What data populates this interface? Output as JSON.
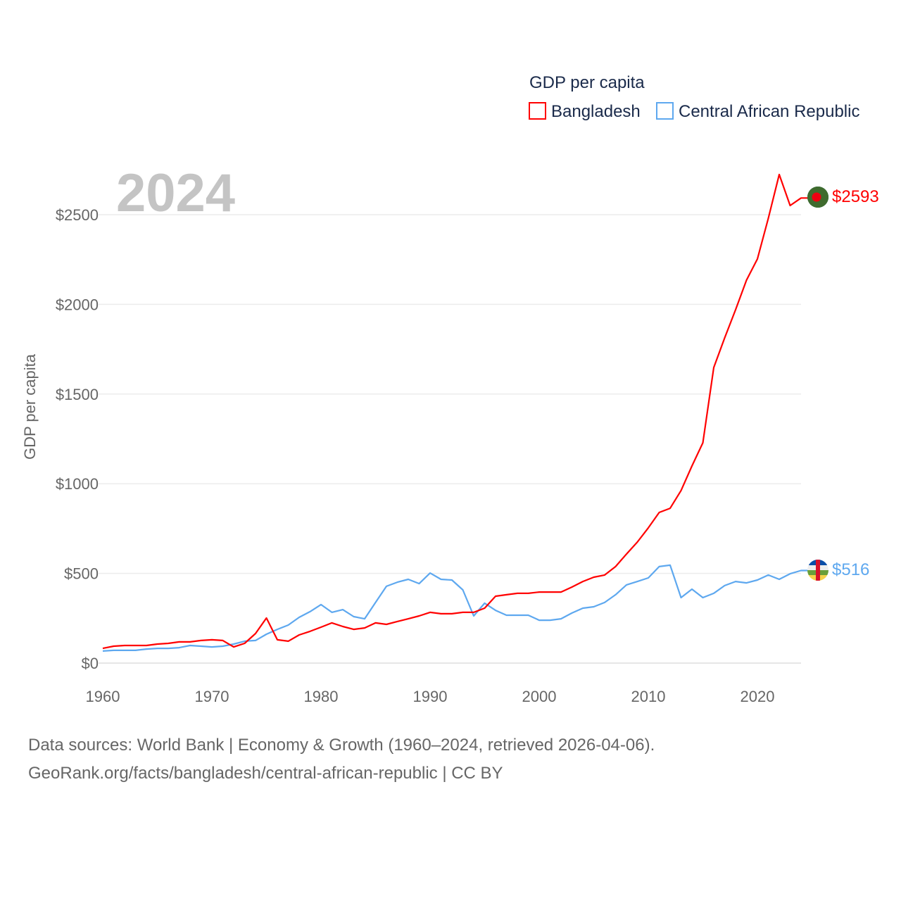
{
  "chart_data": {
    "type": "line",
    "year_watermark": "2024",
    "ylabel": "GDP per capita",
    "legend_title": "GDP per capita",
    "legend_position": "top-right",
    "xlim": [
      1960,
      2024
    ],
    "ylim": [
      0,
      2750
    ],
    "x_ticks": [
      "1960",
      "1970",
      "1980",
      "1990",
      "2000",
      "2010",
      "2020"
    ],
    "x_tick_values": [
      1960,
      1970,
      1980,
      1990,
      2000,
      2010,
      2020
    ],
    "y_ticks": [
      "$0",
      "$500",
      "$1000",
      "$1500",
      "$2000",
      "$2500"
    ],
    "y_tick_values": [
      0,
      500,
      1000,
      1500,
      2000,
      2500
    ],
    "grid": true,
    "x": [
      1960,
      1961,
      1962,
      1963,
      1964,
      1965,
      1966,
      1967,
      1968,
      1969,
      1970,
      1971,
      1972,
      1973,
      1974,
      1975,
      1976,
      1977,
      1978,
      1979,
      1980,
      1981,
      1982,
      1983,
      1984,
      1985,
      1986,
      1987,
      1988,
      1989,
      1990,
      1991,
      1992,
      1993,
      1994,
      1995,
      1996,
      1997,
      1998,
      1999,
      2000,
      2001,
      2002,
      2003,
      2004,
      2005,
      2006,
      2007,
      2008,
      2009,
      2010,
      2011,
      2012,
      2013,
      2014,
      2015,
      2016,
      2017,
      2018,
      2019,
      2020,
      2021,
      2022,
      2023,
      2024
    ],
    "series": [
      {
        "name": "Bangladesh",
        "color": "#ff0000",
        "end_label": "$2593",
        "values": [
          82,
          94,
          98,
          98,
          98,
          106,
          110,
          118,
          118,
          126,
          130,
          126,
          90,
          110,
          165,
          251,
          130,
          122,
          157,
          177,
          200,
          224,
          204,
          188,
          196,
          224,
          216,
          232,
          247,
          263,
          283,
          275,
          275,
          283,
          283,
          306,
          373,
          381,
          389,
          389,
          396,
          396,
          396,
          424,
          455,
          479,
          491,
          538,
          608,
          675,
          754,
          840,
          863,
          962,
          1099,
          1228,
          1648,
          1813,
          1970,
          2135,
          2253,
          2480,
          2724,
          2551,
          2593
        ]
      },
      {
        "name": "Central African Republic",
        "color": "#5ea8ef",
        "end_label": "$516",
        "values": [
          67,
          71,
          71,
          71,
          78,
          82,
          82,
          86,
          98,
          94,
          90,
          94,
          106,
          122,
          126,
          161,
          188,
          212,
          255,
          287,
          326,
          283,
          298,
          259,
          247,
          338,
          428,
          451,
          467,
          443,
          502,
          467,
          463,
          408,
          263,
          334,
          294,
          267,
          267,
          267,
          239,
          239,
          247,
          279,
          306,
          314,
          338,
          381,
          436,
          455,
          475,
          538,
          546,
          365,
          412,
          365,
          389,
          432,
          455,
          447,
          463,
          491,
          467,
          498,
          516
        ]
      }
    ]
  },
  "footer": {
    "line1": "Data sources: World Bank | Economy & Growth (1960–2024, retrieved 2026-04-06).",
    "line2": "GeoRank.org/facts/bangladesh/central-african-republic | CC BY"
  }
}
